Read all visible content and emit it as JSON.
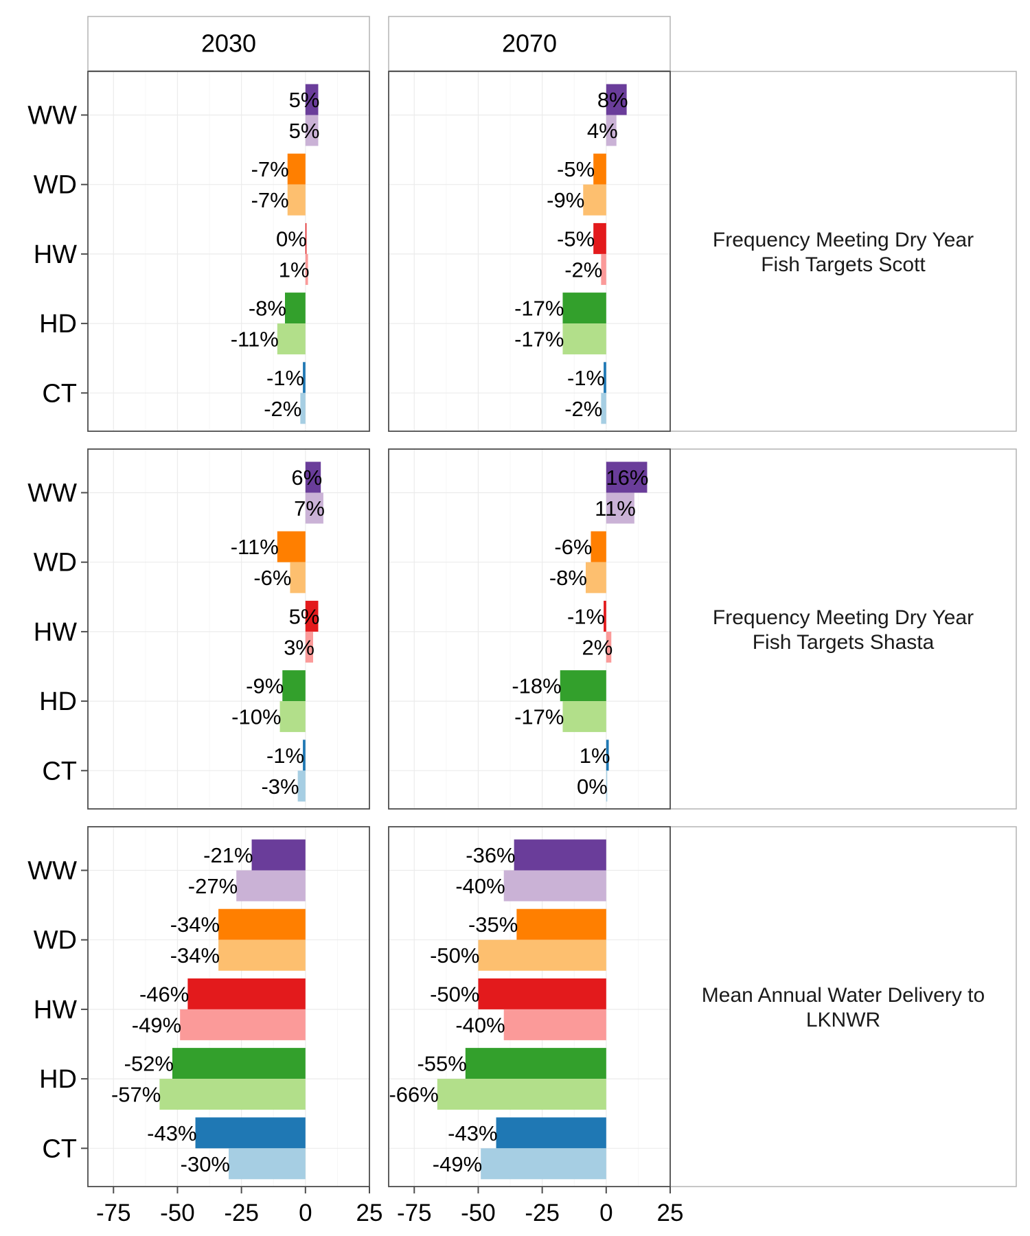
{
  "chart_data": {
    "type": "bar",
    "orientation": "horizontal",
    "facet_columns": [
      "2030",
      "2070"
    ],
    "categories": [
      "WW",
      "WD",
      "HW",
      "HD",
      "CT"
    ],
    "category_colors": {
      "WW": {
        "dark": "#6a3d9a",
        "light": "#cab2d6"
      },
      "WD": {
        "dark": "#ff7f00",
        "light": "#fdbf6f"
      },
      "HW": {
        "dark": "#e31a1c",
        "light": "#fb9a99"
      },
      "HD": {
        "dark": "#33a02c",
        "light": "#b2df8a"
      },
      "CT": {
        "dark": "#1f78b4",
        "light": "#a6cee3"
      }
    },
    "x_ticks": [
      -75,
      -50,
      -25,
      0,
      25
    ],
    "xlim": [
      -85,
      25
    ],
    "grid": true,
    "legend": "none",
    "label_suffix": "%",
    "panels": [
      {
        "row_label_lines": [
          "Frequency Meeting Dry Year",
          "Fish Targets Scott"
        ],
        "values": {
          "2030": {
            "WW": [
              5,
              5
            ],
            "WD": [
              -7,
              -7
            ],
            "HW": [
              0,
              1
            ],
            "HD": [
              -8,
              -11
            ],
            "CT": [
              -1,
              -2
            ]
          },
          "2070": {
            "WW": [
              8,
              4
            ],
            "WD": [
              -5,
              -9
            ],
            "HW": [
              -5,
              -2
            ],
            "HD": [
              -17,
              -17
            ],
            "CT": [
              -1,
              -2
            ]
          }
        }
      },
      {
        "row_label_lines": [
          "Frequency Meeting Dry Year",
          "Fish Targets Shasta"
        ],
        "values": {
          "2030": {
            "WW": [
              6,
              7
            ],
            "WD": [
              -11,
              -6
            ],
            "HW": [
              5,
              3
            ],
            "HD": [
              -9,
              -10
            ],
            "CT": [
              -1,
              -3
            ]
          },
          "2070": {
            "WW": [
              16,
              11
            ],
            "WD": [
              -6,
              -8
            ],
            "HW": [
              -1,
              2
            ],
            "HD": [
              -18,
              -17
            ],
            "CT": [
              1,
              0
            ]
          }
        }
      },
      {
        "row_label_lines": [
          "Mean Annual Water Delivery to",
          "LKNWR"
        ],
        "values": {
          "2030": {
            "WW": [
              -21,
              -27
            ],
            "WD": [
              -34,
              -34
            ],
            "HW": [
              -46,
              -49
            ],
            "HD": [
              -52,
              -57
            ],
            "CT": [
              -43,
              -30
            ]
          },
          "2070": {
            "WW": [
              -36,
              -40
            ],
            "WD": [
              -35,
              -50
            ],
            "HW": [
              -50,
              -40
            ],
            "HD": [
              -55,
              -66
            ],
            "CT": [
              -43,
              -49
            ]
          }
        }
      }
    ]
  }
}
